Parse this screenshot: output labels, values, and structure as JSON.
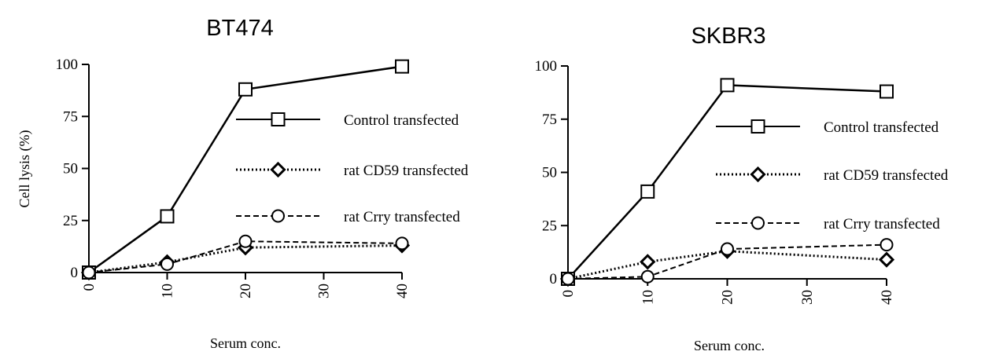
{
  "chart_data": [
    {
      "type": "line",
      "title": "BT474",
      "xlabel": "Serum conc.",
      "ylabel": "Cell lysis (%)",
      "x_ticks": [
        "0",
        "10",
        "20",
        "30",
        "40"
      ],
      "y_ticks": [
        "0",
        "25",
        "50",
        "75",
        "100"
      ],
      "xlim": [
        0,
        40
      ],
      "ylim": [
        0,
        100
      ],
      "grid": false,
      "legend_position": "right",
      "series": [
        {
          "name": "Control transfected",
          "marker": "square",
          "line": "solid",
          "x": [
            0,
            10,
            20,
            40
          ],
          "y": [
            0,
            27,
            88,
            99
          ]
        },
        {
          "name": "rat CD59 transfected",
          "marker": "diamond",
          "line": "dotted",
          "x": [
            0,
            10,
            20,
            40
          ],
          "y": [
            0,
            5,
            12,
            13
          ]
        },
        {
          "name": "rat Crry transfected",
          "marker": "circle",
          "line": "dashed",
          "x": [
            0,
            10,
            20,
            40
          ],
          "y": [
            0,
            4,
            15,
            14
          ]
        }
      ]
    },
    {
      "type": "line",
      "title": "SKBR3",
      "xlabel": "Serum conc.",
      "ylabel": "",
      "x_ticks": [
        "0",
        "10",
        "20",
        "30",
        "40"
      ],
      "y_ticks": [
        "0",
        "25",
        "50",
        "75",
        "100"
      ],
      "xlim": [
        0,
        40
      ],
      "ylim": [
        0,
        100
      ],
      "grid": false,
      "legend_position": "right",
      "series": [
        {
          "name": "Control transfected",
          "marker": "square",
          "line": "solid",
          "x": [
            0,
            10,
            20,
            40
          ],
          "y": [
            0,
            41,
            91,
            88
          ]
        },
        {
          "name": "rat CD59 transfected",
          "marker": "diamond",
          "line": "dotted",
          "x": [
            0,
            10,
            20,
            40
          ],
          "y": [
            0,
            8,
            13,
            9
          ]
        },
        {
          "name": "rat Crry transfected",
          "marker": "circle",
          "line": "dashed",
          "x": [
            0,
            10,
            20,
            40
          ],
          "y": [
            0,
            1,
            14,
            16
          ]
        }
      ]
    }
  ]
}
